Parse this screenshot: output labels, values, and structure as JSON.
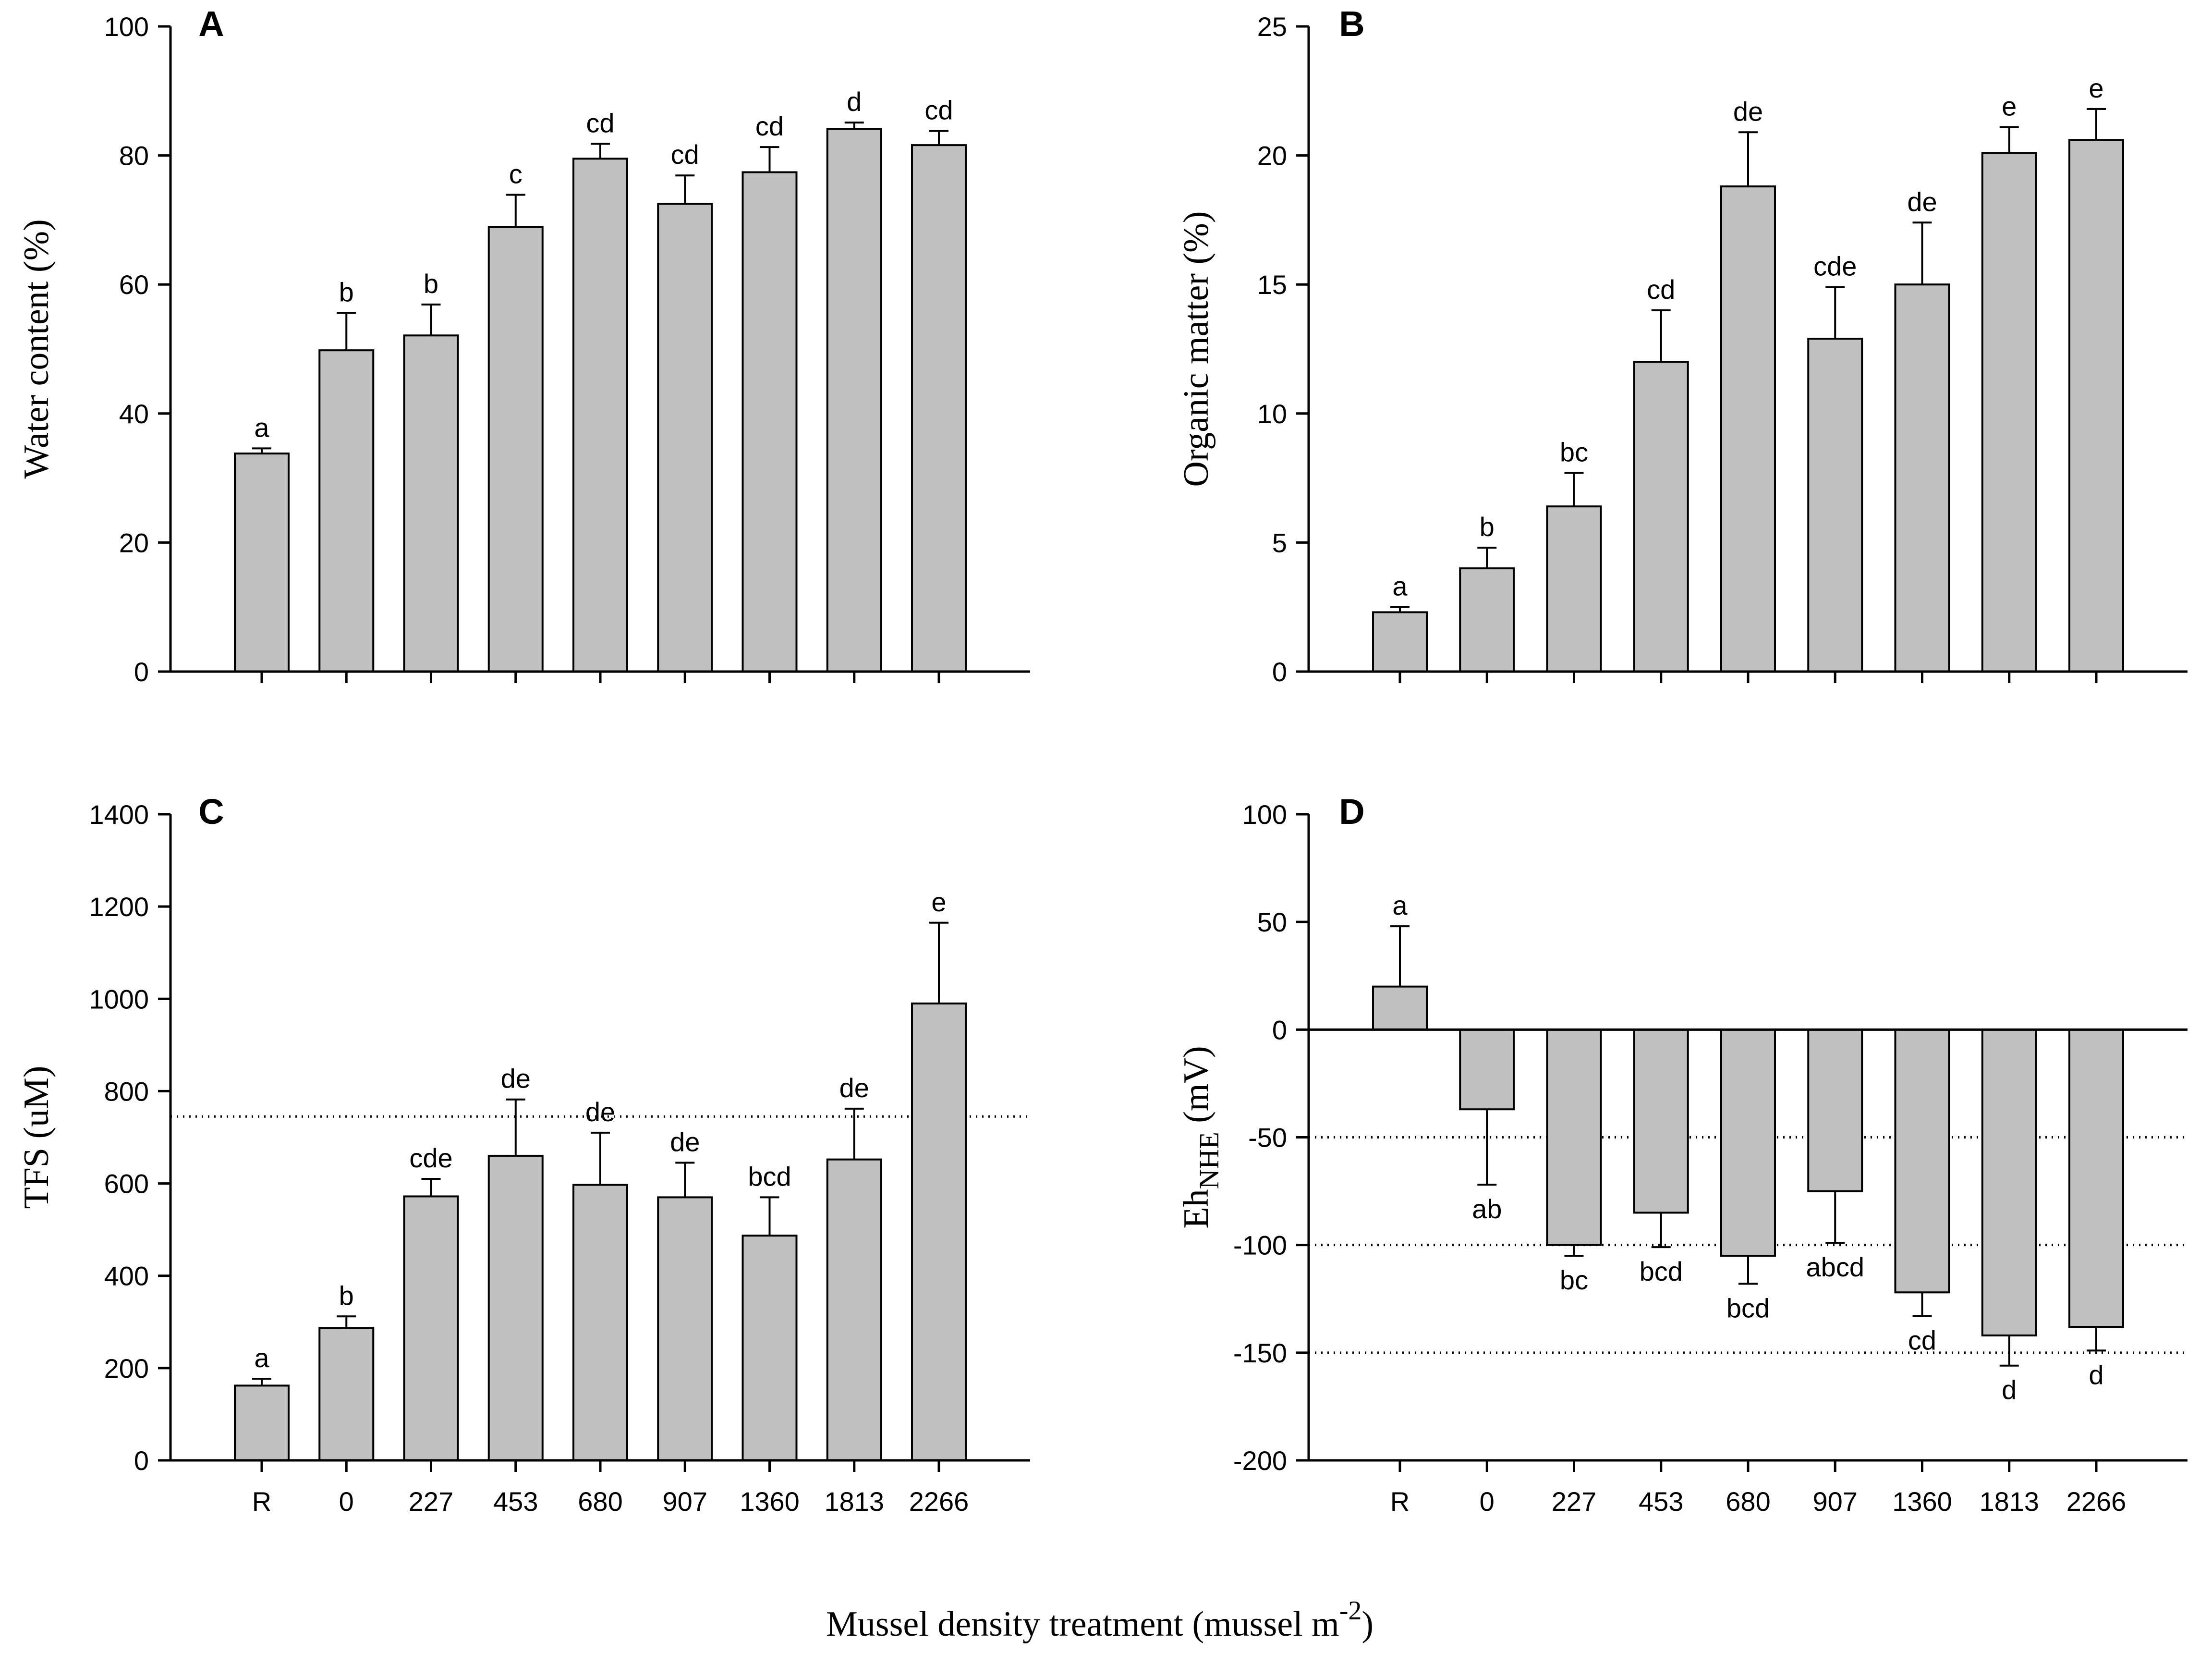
{
  "figure": {
    "xlabel_main": "Mussel density treatment (mussel m",
    "xlabel_sup": "-2",
    "xlabel_close": ")"
  },
  "chart_data": [
    {
      "type": "bar",
      "panel": "A",
      "categories": [
        "R",
        "0",
        "227",
        "453",
        "680",
        "907",
        "1360",
        "1813",
        "2266"
      ],
      "values": [
        33.8,
        49.8,
        52.1,
        68.9,
        79.5,
        72.5,
        77.4,
        84.1,
        81.6
      ],
      "errors": [
        0.8,
        5.8,
        4.8,
        5.0,
        2.3,
        4.4,
        3.9,
        1.0,
        2.2
      ],
      "sig_letters": [
        "a",
        "b",
        "b",
        "c",
        "cd",
        "cd",
        "cd",
        "d",
        "cd"
      ],
      "title": "",
      "xlabel": "",
      "ylabel": "Water content (%)",
      "ylim": [
        0,
        100
      ],
      "yticks": [
        0,
        20,
        40,
        60,
        80,
        100
      ],
      "show_xtick_labels": false,
      "ref_lines": [],
      "zero_line": false
    },
    {
      "type": "bar",
      "panel": "B",
      "categories": [
        "R",
        "0",
        "227",
        "453",
        "680",
        "907",
        "1360",
        "1813",
        "2266"
      ],
      "values": [
        2.3,
        4.0,
        6.4,
        12.0,
        18.8,
        12.9,
        15.0,
        20.1,
        20.6
      ],
      "errors": [
        0.2,
        0.8,
        1.3,
        2.0,
        2.1,
        2.0,
        2.4,
        1.0,
        1.2
      ],
      "sig_letters": [
        "a",
        "b",
        "bc",
        "cd",
        "de",
        "cde",
        "de",
        "e",
        "e"
      ],
      "title": "",
      "xlabel": "",
      "ylabel": "Organic matter (%)",
      "ylim": [
        0,
        25
      ],
      "yticks": [
        0,
        5,
        10,
        15,
        20,
        25
      ],
      "show_xtick_labels": false,
      "ref_lines": [],
      "zero_line": false
    },
    {
      "type": "bar",
      "panel": "C",
      "categories": [
        "R",
        "0",
        "227",
        "453",
        "680",
        "907",
        "1360",
        "1813",
        "2266"
      ],
      "values": [
        162,
        287,
        572,
        660,
        597,
        570,
        487,
        652,
        990
      ],
      "errors": [
        15,
        25,
        38,
        122,
        113,
        75,
        83,
        110,
        175
      ],
      "sig_letters": [
        "a",
        "b",
        "cde",
        "de",
        "de",
        "de",
        "bcd",
        "de",
        "e"
      ],
      "title": "",
      "xlabel": "",
      "ylabel": "TFS (uM)",
      "ylim": [
        0,
        1400
      ],
      "yticks": [
        0,
        200,
        400,
        600,
        800,
        1000,
        1200,
        1400
      ],
      "show_xtick_labels": true,
      "ref_lines": [
        745
      ],
      "zero_line": false
    },
    {
      "type": "bar",
      "panel": "D",
      "categories": [
        "R",
        "0",
        "227",
        "453",
        "680",
        "907",
        "1360",
        "1813",
        "2266"
      ],
      "values": [
        20,
        -37,
        -100,
        -85,
        -105,
        -75,
        -122,
        -142,
        -138
      ],
      "errors": [
        28,
        35,
        5,
        16,
        13,
        24,
        11,
        14,
        11
      ],
      "sig_letters": [
        "a",
        "ab",
        "bc",
        "bcd",
        "bcd",
        "abcd",
        "cd",
        "d",
        "d"
      ],
      "title": "",
      "xlabel": "",
      "ylabel": "Eh",
      "ylabel_sub": "NHE",
      "ylabel_unit": " (mV)",
      "ylim": [
        -200,
        100
      ],
      "yticks": [
        -200,
        -150,
        -100,
        -50,
        0,
        50,
        100
      ],
      "show_xtick_labels": true,
      "ref_lines": [
        -50,
        -100,
        -150
      ],
      "zero_line": true
    }
  ]
}
